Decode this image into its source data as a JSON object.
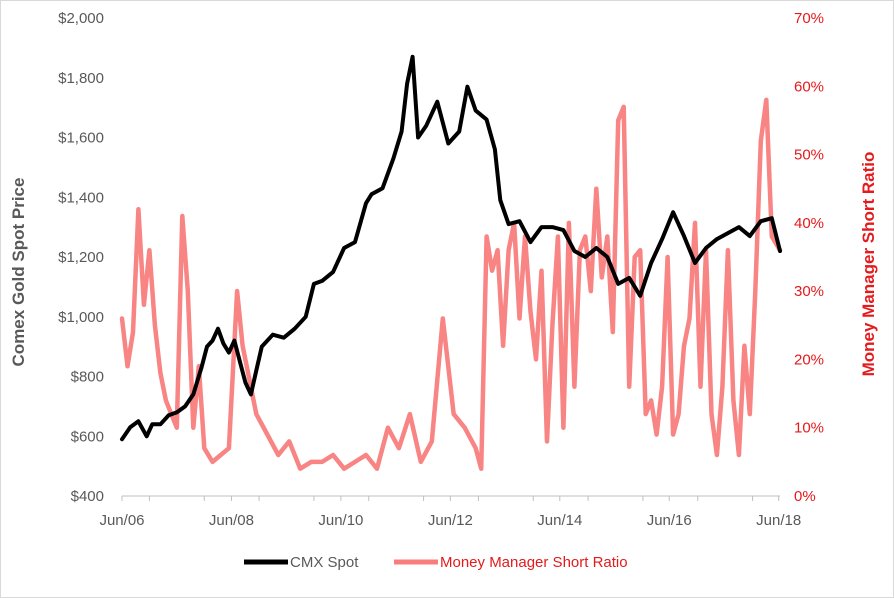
{
  "chart_data": {
    "type": "line",
    "x_start": "Jun/06",
    "x_end": "Jun/18",
    "x_ticks": [
      "Jun/06",
      "Jun/08",
      "Jun/10",
      "Jun/12",
      "Jun/14",
      "Jun/16",
      "Jun/18"
    ],
    "y_left": {
      "label": "Comex Gold Spot Price",
      "ticks": [
        "$400",
        "$600",
        "$800",
        "$1,000",
        "$1,200",
        "$1,400",
        "$1,600",
        "$1,800",
        "$2,000"
      ],
      "tick_values": [
        400,
        600,
        800,
        1000,
        1200,
        1400,
        1600,
        1800,
        2000
      ],
      "range": [
        400,
        2000
      ]
    },
    "y_right": {
      "label": "Money Manager Short Ratio",
      "ticks": [
        "0%",
        "10%",
        "20%",
        "30%",
        "40%",
        "50%",
        "60%",
        "70%"
      ],
      "tick_values": [
        0,
        10,
        20,
        30,
        40,
        50,
        60,
        70
      ],
      "range": [
        0,
        70
      ]
    },
    "legend_position": "bottom",
    "series": [
      {
        "name": "CMX Spot",
        "axis": "left",
        "color": "#000000",
        "x": [
          2006.45,
          2006.6,
          2006.75,
          2006.9,
          2007.0,
          2007.15,
          2007.3,
          2007.45,
          2007.6,
          2007.75,
          2007.9,
          2008.0,
          2008.1,
          2008.2,
          2008.3,
          2008.4,
          2008.5,
          2008.6,
          2008.7,
          2008.8,
          2008.9,
          2009.0,
          2009.2,
          2009.4,
          2009.6,
          2009.8,
          2009.95,
          2010.1,
          2010.3,
          2010.5,
          2010.7,
          2010.9,
          2011.0,
          2011.2,
          2011.4,
          2011.55,
          2011.65,
          2011.75,
          2011.85,
          2012.0,
          2012.2,
          2012.4,
          2012.6,
          2012.75,
          2012.9,
          2013.1,
          2013.25,
          2013.35,
          2013.5,
          2013.7,
          2013.9,
          2014.1,
          2014.3,
          2014.5,
          2014.7,
          2014.9,
          2015.1,
          2015.3,
          2015.5,
          2015.7,
          2015.9,
          2016.1,
          2016.3,
          2016.5,
          2016.7,
          2016.9,
          2017.1,
          2017.3,
          2017.5,
          2017.7,
          2017.9,
          2018.1,
          2018.3,
          2018.45
        ],
        "values": [
          590,
          630,
          650,
          600,
          640,
          640,
          670,
          680,
          700,
          740,
          830,
          900,
          920,
          960,
          910,
          880,
          920,
          850,
          780,
          740,
          820,
          900,
          940,
          930,
          960,
          1000,
          1110,
          1120,
          1150,
          1230,
          1250,
          1380,
          1410,
          1430,
          1530,
          1620,
          1780,
          1870,
          1600,
          1640,
          1720,
          1580,
          1620,
          1770,
          1690,
          1660,
          1560,
          1390,
          1310,
          1320,
          1250,
          1300,
          1300,
          1290,
          1220,
          1200,
          1230,
          1200,
          1110,
          1130,
          1070,
          1180,
          1260,
          1350,
          1270,
          1180,
          1230,
          1260,
          1280,
          1300,
          1270,
          1320,
          1330,
          1220
        ]
      },
      {
        "name": "Money Manager Short Ratio",
        "axis": "right",
        "color": "#f87d7d",
        "x": [
          2006.45,
          2006.55,
          2006.65,
          2006.75,
          2006.85,
          2006.95,
          2007.05,
          2007.15,
          2007.25,
          2007.35,
          2007.45,
          2007.55,
          2007.65,
          2007.75,
          2007.85,
          2007.95,
          2008.1,
          2008.25,
          2008.4,
          2008.55,
          2008.65,
          2008.75,
          2008.9,
          2009.1,
          2009.3,
          2009.5,
          2009.7,
          2009.9,
          2010.1,
          2010.3,
          2010.5,
          2010.7,
          2010.9,
          2011.1,
          2011.3,
          2011.5,
          2011.7,
          2011.9,
          2012.1,
          2012.3,
          2012.5,
          2012.7,
          2012.9,
          2013.0,
          2013.1,
          2013.2,
          2013.3,
          2013.4,
          2013.5,
          2013.6,
          2013.7,
          2013.8,
          2013.9,
          2014.0,
          2014.1,
          2014.2,
          2014.3,
          2014.4,
          2014.5,
          2014.6,
          2014.7,
          2014.8,
          2014.9,
          2015.0,
          2015.1,
          2015.2,
          2015.3,
          2015.4,
          2015.5,
          2015.6,
          2015.7,
          2015.8,
          2015.9,
          2016.0,
          2016.1,
          2016.2,
          2016.3,
          2016.4,
          2016.5,
          2016.6,
          2016.7,
          2016.8,
          2016.9,
          2017.0,
          2017.1,
          2017.2,
          2017.3,
          2017.4,
          2017.5,
          2017.6,
          2017.7,
          2017.8,
          2017.9,
          2018.0,
          2018.1,
          2018.2,
          2018.3,
          2018.45
        ],
        "values": [
          26,
          19,
          24,
          42,
          28,
          36,
          25,
          18,
          14,
          12,
          10,
          41,
          30,
          10,
          19,
          7,
          5,
          6,
          7,
          30,
          22,
          18,
          12,
          9,
          6,
          8,
          4,
          5,
          5,
          6,
          4,
          5,
          6,
          4,
          10,
          7,
          12,
          5,
          8,
          26,
          12,
          10,
          7,
          4,
          38,
          33,
          36,
          22,
          36,
          40,
          26,
          38,
          27,
          20,
          33,
          8,
          25,
          38,
          10,
          40,
          16,
          36,
          38,
          30,
          45,
          32,
          38,
          24,
          55,
          57,
          16,
          35,
          36,
          12,
          14,
          9,
          16,
          35,
          9,
          12,
          22,
          26,
          40,
          16,
          36,
          12,
          6,
          16,
          36,
          14,
          6,
          22,
          12,
          30,
          52,
          58,
          38,
          36
        ]
      }
    ]
  }
}
